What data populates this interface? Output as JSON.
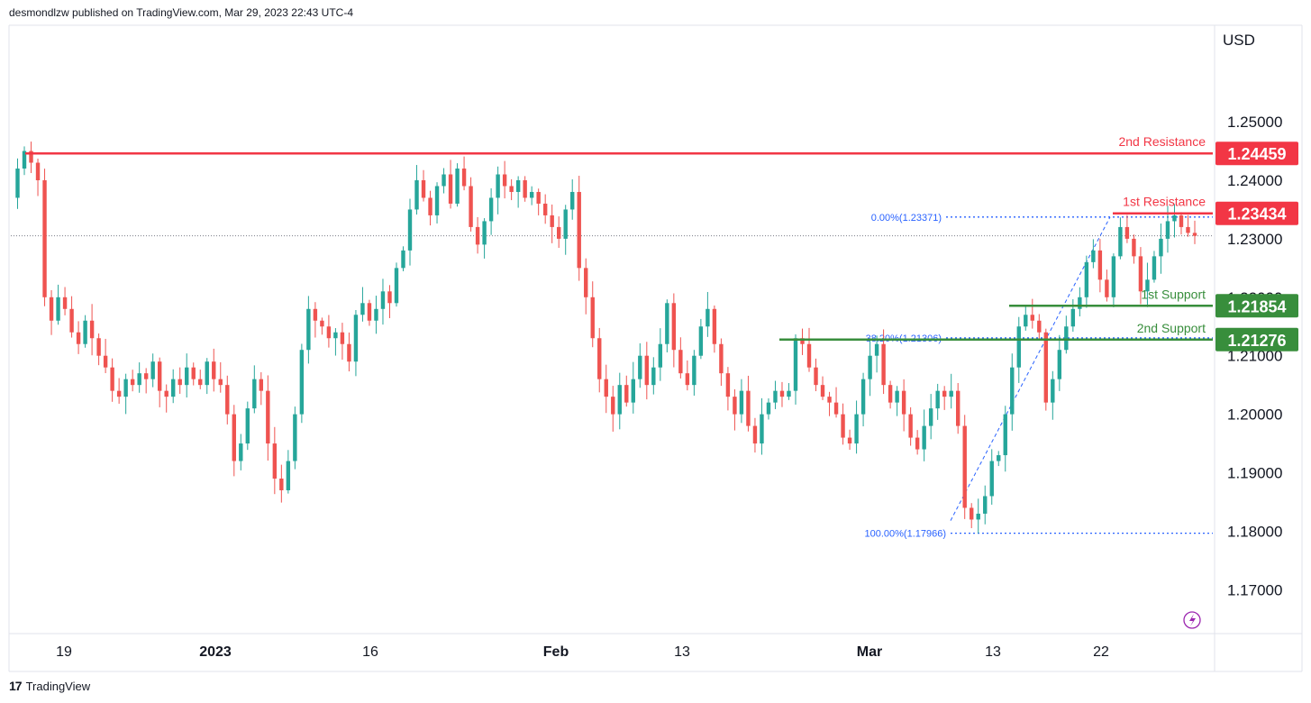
{
  "header": {
    "attribution": "desmondlzw published on TradingView.com, Mar 29, 2023 22:43 UTC-4"
  },
  "axis": {
    "currency": "USD"
  },
  "footer": {
    "brand": "TradingView",
    "logo_glyph": "17"
  },
  "colors": {
    "up": "#26a69a",
    "down": "#ef5350",
    "resistance": "#f23645",
    "support": "#388e3c",
    "fib": "#2962ff"
  },
  "chart_data": {
    "type": "candlestick",
    "y_ticks": [
      "1.25000",
      "1.24000",
      "1.23000",
      "1.22000",
      "1.21000",
      "1.20000",
      "1.19000",
      "1.18000",
      "1.17000"
    ],
    "y_tick_values": [
      1.25,
      1.24,
      1.23,
      1.22,
      1.21,
      1.2,
      1.19,
      1.18,
      1.17
    ],
    "x_ticks": [
      "19",
      "2023",
      "16",
      "Feb",
      "13",
      "Mar",
      "13",
      "22"
    ],
    "ylim": [
      1.1625,
      1.2665
    ],
    "last_price": 1.2305,
    "levels": [
      {
        "name": "2nd Resistance",
        "value": 1.24459,
        "label": "1.24459",
        "kind": "resistance"
      },
      {
        "name": "1st Resistance",
        "value": 1.23434,
        "label": "1.23434",
        "kind": "resistance"
      },
      {
        "name": "1st Support",
        "value": 1.21854,
        "label": "1.21854",
        "kind": "support"
      },
      {
        "name": "2nd Support",
        "value": 1.21276,
        "label": "1.21276",
        "kind": "support"
      }
    ],
    "fibonacci": [
      {
        "label": "0.00%(1.23371)",
        "value": 1.23371
      },
      {
        "label": "38.20%(1.21306)",
        "value": 1.21306
      },
      {
        "label": "100.00%(1.17966)",
        "value": 1.17966
      }
    ],
    "price_path": [
      1.237,
      1.242,
      1.245,
      1.243,
      1.24,
      1.22,
      1.216,
      1.22,
      1.218,
      1.214,
      1.212,
      1.216,
      1.213,
      1.21,
      1.208,
      1.204,
      1.203,
      1.206,
      1.205,
      1.207,
      1.206,
      1.209,
      1.204,
      1.203,
      1.206,
      1.205,
      1.208,
      1.206,
      1.205,
      1.209,
      1.206,
      1.205,
      1.2,
      1.192,
      1.195,
      1.201,
      1.206,
      1.204,
      1.195,
      1.189,
      1.187,
      1.192,
      1.2,
      1.211,
      1.218,
      1.216,
      1.215,
      1.213,
      1.214,
      1.212,
      1.209,
      1.217,
      1.219,
      1.216,
      1.218,
      1.221,
      1.219,
      1.225,
      1.228,
      1.235,
      1.24,
      1.237,
      1.234,
      1.239,
      1.241,
      1.236,
      1.242,
      1.239,
      1.232,
      1.229,
      1.233,
      1.237,
      1.241,
      1.239,
      1.238,
      1.24,
      1.237,
      1.238,
      1.236,
      1.234,
      1.232,
      1.23,
      1.235,
      1.238,
      1.225,
      1.22,
      1.213,
      1.206,
      1.203,
      1.2,
      1.205,
      1.202,
      1.206,
      1.21,
      1.205,
      1.208,
      1.212,
      1.219,
      1.211,
      1.207,
      1.205,
      1.21,
      1.215,
      1.218,
      1.212,
      1.207,
      1.203,
      1.2,
      1.204,
      1.198,
      1.195,
      1.2,
      1.202,
      1.204,
      1.203,
      1.204,
      1.213,
      1.212,
      1.208,
      1.205,
      1.203,
      1.202,
      1.2,
      1.196,
      1.195,
      1.2,
      1.206,
      1.21,
      1.212,
      1.205,
      1.202,
      1.204,
      1.2,
      1.196,
      1.194,
      1.198,
      1.201,
      1.204,
      1.203,
      1.204,
      1.198,
      1.184,
      1.182,
      1.183,
      1.186,
      1.192,
      1.193,
      1.2,
      1.208,
      1.215,
      1.217,
      1.216,
      1.214,
      1.202,
      1.206,
      1.211,
      1.215,
      1.218,
      1.22,
      1.226,
      1.228,
      1.223,
      1.22,
      1.227,
      1.232,
      1.23,
      1.227,
      1.221,
      1.223,
      1.227,
      1.23,
      1.233,
      1.234,
      1.232,
      1.231,
      1.2305
    ]
  }
}
